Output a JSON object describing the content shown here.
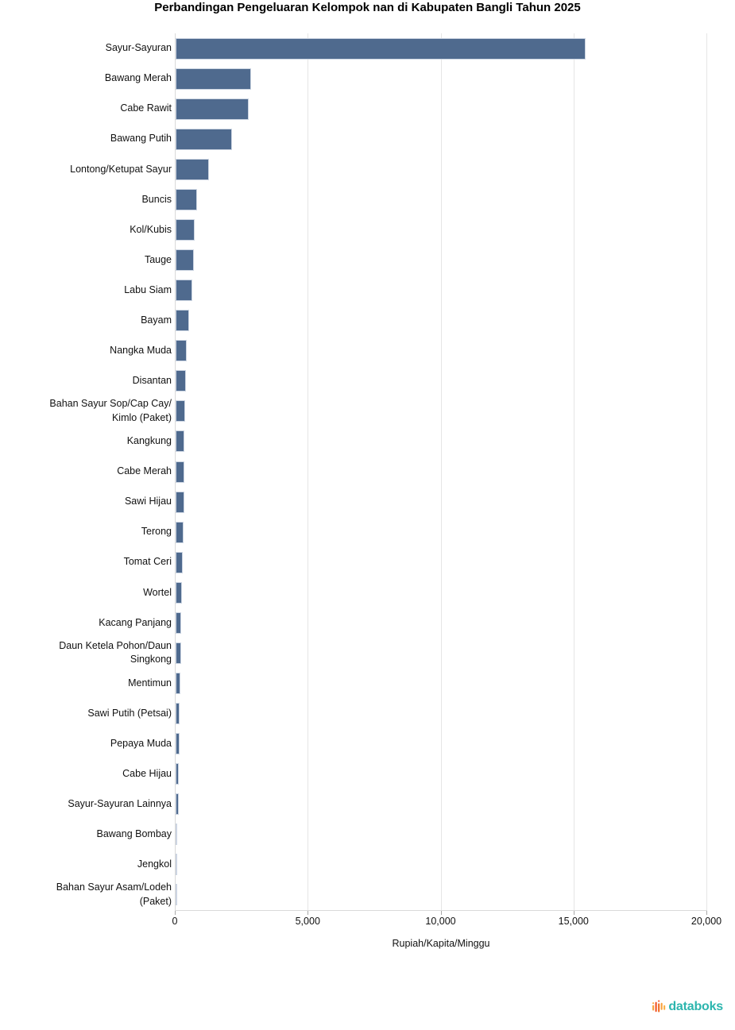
{
  "chart_data": {
    "type": "bar",
    "orientation": "horizontal",
    "title": "Perbandingan Pengeluaran Kelompok nan di Kabupaten Bangli Tahun 2025",
    "xlabel": "Rupiah/Kapita/Minggu",
    "xlim": [
      0,
      20000
    ],
    "xticks": [
      {
        "value": 0,
        "label": "0"
      },
      {
        "value": 5000,
        "label": "5,000"
      },
      {
        "value": 10000,
        "label": "10,000"
      },
      {
        "value": 15000,
        "label": "15,000"
      },
      {
        "value": 20000,
        "label": "20,000"
      }
    ],
    "grid": true,
    "legend": false,
    "categories": [
      "Sayur-Sayuran",
      "Bawang Merah",
      "Cabe Rawit",
      "Bawang Putih",
      "Lontong/Ketupat Sayur",
      "Buncis",
      "Kol/Kubis",
      "Tauge",
      "Labu Siam",
      "Bayam",
      "Nangka Muda",
      "Disantan",
      "Bahan Sayur Sop/Cap Cay/ Kimlo (Paket)",
      "Kangkung",
      "Cabe Merah",
      "Sawi Hijau",
      "Terong",
      "Tomat Ceri",
      "Wortel",
      "Kacang Panjang",
      "Daun Ketela Pohon/Daun Singkong",
      "Mentimun",
      "Sawi Putih (Petsai)",
      "Pepaya Muda",
      "Cabe Hijau",
      "Sayur-Sayuran Lainnya",
      "Bawang Bombay",
      "Jengkol",
      "Bahan Sayur Asam/Lodeh (Paket)"
    ],
    "values": [
      15430,
      2850,
      2750,
      2130,
      1250,
      810,
      730,
      690,
      630,
      510,
      420,
      390,
      360,
      335,
      325,
      315,
      295,
      270,
      245,
      220,
      210,
      185,
      155,
      150,
      130,
      110,
      60,
      45,
      10
    ],
    "colors": {
      "bar": "#4F6A8E",
      "bar_border": "#ccd5e2",
      "gridline": "#e6e6e6",
      "axis_line": "#d9d9d9"
    }
  },
  "branding": {
    "logo_text": "databoks",
    "logo_text_color": "#2CB5AE",
    "logo_icon_colors": [
      "#F9A13C",
      "#F05123",
      "#F26B21",
      "#FBB040"
    ]
  }
}
